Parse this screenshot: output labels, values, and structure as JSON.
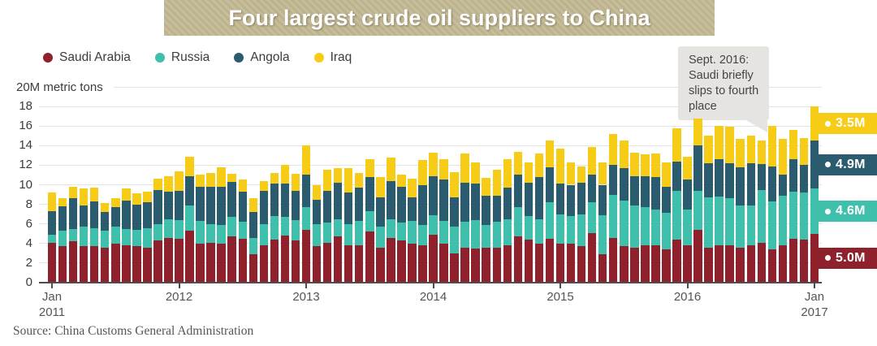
{
  "title": "Four largest crude oil suppliers to China",
  "y_axis_label": "20M metric tons",
  "source": "Source: China Customs General Administration",
  "annotation": {
    "text": "Sept. 2016:\nSaudi briefly\nslips to fourth\nplace"
  },
  "colors": {
    "saudi": "#8E212B",
    "russia": "#3FC0AD",
    "angola": "#2A5B6E",
    "iraq": "#F6CC16",
    "title_bg": "#C1B794",
    "annotation_bg": "#E5E4E1",
    "grid": "#E3E3E3",
    "axis": "#4D4D4D"
  },
  "legend": [
    {
      "name": "Saudi Arabia",
      "color": "#8E212B"
    },
    {
      "name": "Russia",
      "color": "#3FC0AD"
    },
    {
      "name": "Angola",
      "color": "#2A5B6E"
    },
    {
      "name": "Iraq",
      "color": "#F6CC16"
    }
  ],
  "end_labels": [
    {
      "text": "3.5M",
      "series": "Iraq"
    },
    {
      "text": "4.9M",
      "series": "Angola"
    },
    {
      "text": "4.6M",
      "series": "Russia"
    },
    {
      "text": "5.0M",
      "series": "Saudi Arabia"
    }
  ],
  "chart_data": {
    "type": "bar",
    "stacked": true,
    "title": "Four largest crude oil suppliers to China",
    "xlabel": "",
    "ylabel": "20M metric tons",
    "ylim": [
      0,
      20
    ],
    "yticks": [
      0,
      2,
      4,
      6,
      8,
      10,
      12,
      14,
      16,
      18
    ],
    "grid": true,
    "legend_position": "top-left",
    "units": "million metric tons per month",
    "x_ticks": [
      {
        "index": 0,
        "label": "Jan\n2011"
      },
      {
        "index": 12,
        "label": "2012"
      },
      {
        "index": 24,
        "label": "2013"
      },
      {
        "index": 36,
        "label": "2014"
      },
      {
        "index": 48,
        "label": "2015"
      },
      {
        "index": 60,
        "label": "2016"
      },
      {
        "index": 72,
        "label": "Jan\n2017"
      }
    ],
    "categories": [
      "Jan 2011",
      "Feb 2011",
      "Mar 2011",
      "Apr 2011",
      "May 2011",
      "Jun 2011",
      "Jul 2011",
      "Aug 2011",
      "Sep 2011",
      "Oct 2011",
      "Nov 2011",
      "Dec 2011",
      "Jan 2012",
      "Feb 2012",
      "Mar 2012",
      "Apr 2012",
      "May 2012",
      "Jun 2012",
      "Jul 2012",
      "Aug 2012",
      "Sep 2012",
      "Oct 2012",
      "Nov 2012",
      "Dec 2012",
      "Jan 2013",
      "Feb 2013",
      "Mar 2013",
      "Apr 2013",
      "May 2013",
      "Jun 2013",
      "Jul 2013",
      "Aug 2013",
      "Sep 2013",
      "Oct 2013",
      "Nov 2013",
      "Dec 2013",
      "Jan 2014",
      "Feb 2014",
      "Mar 2014",
      "Apr 2014",
      "May 2014",
      "Jun 2014",
      "Jul 2014",
      "Aug 2014",
      "Sep 2014",
      "Oct 2014",
      "Nov 2014",
      "Dec 2014",
      "Jan 2015",
      "Feb 2015",
      "Mar 2015",
      "Apr 2015",
      "May 2015",
      "Jun 2015",
      "Jul 2015",
      "Aug 2015",
      "Sep 2015",
      "Oct 2015",
      "Nov 2015",
      "Dec 2015",
      "Jan 2016",
      "Feb 2016",
      "Mar 2016",
      "Apr 2016",
      "May 2016",
      "Jun 2016",
      "Jul 2016",
      "Aug 2016",
      "Sep 2016",
      "Oct 2016",
      "Nov 2016",
      "Dec 2016",
      "Jan 2017"
    ],
    "series": [
      {
        "name": "Saudi Arabia",
        "color": "#8E212B",
        "values": [
          4.1,
          3.7,
          4.2,
          3.7,
          3.7,
          3.6,
          4.0,
          3.8,
          3.7,
          3.6,
          4.3,
          4.6,
          4.5,
          5.3,
          4.0,
          4.1,
          4.0,
          4.7,
          4.5,
          2.9,
          3.8,
          4.4,
          4.8,
          4.3,
          5.4,
          3.7,
          4.1,
          4.7,
          3.8,
          3.8,
          5.2,
          3.6,
          4.6,
          4.3,
          4.0,
          3.8,
          4.9,
          4.0,
          3.0,
          3.6,
          3.5,
          3.6,
          3.6,
          3.8,
          4.7,
          4.4,
          4.0,
          4.5,
          4.0,
          4.0,
          3.7,
          5.1,
          2.9,
          4.6,
          3.7,
          3.6,
          3.8,
          3.8,
          3.4,
          4.4,
          3.8,
          5.4,
          3.6,
          3.8,
          3.8,
          3.6,
          3.8,
          4.1,
          3.4,
          3.8,
          4.5,
          4.4,
          5.0
        ]
      },
      {
        "name": "Russia",
        "color": "#3FC0AD",
        "values": [
          0.8,
          1.6,
          1.3,
          2.0,
          1.9,
          1.7,
          1.7,
          1.7,
          1.7,
          2.0,
          1.7,
          1.9,
          1.9,
          2.6,
          2.3,
          1.9,
          1.9,
          2.0,
          1.7,
          1.7,
          2.2,
          2.4,
          1.9,
          2.1,
          2.3,
          2.3,
          2.0,
          1.8,
          2.2,
          2.5,
          2.1,
          2.1,
          1.9,
          1.8,
          2.3,
          2.1,
          2.0,
          2.3,
          2.7,
          2.6,
          2.9,
          2.3,
          2.6,
          2.7,
          3.0,
          2.4,
          2.5,
          3.7,
          3.0,
          2.8,
          3.3,
          3.1,
          4.0,
          4.4,
          4.7,
          4.3,
          3.9,
          3.7,
          3.7,
          5.0,
          3.7,
          4.0,
          5.1,
          5.0,
          4.8,
          4.3,
          4.1,
          5.4,
          4.9,
          5.1,
          4.8,
          4.8,
          4.6
        ]
      },
      {
        "name": "Angola",
        "color": "#2A5B6E",
        "values": [
          2.4,
          2.5,
          3.1,
          2.2,
          2.7,
          1.9,
          2.0,
          2.9,
          2.6,
          2.6,
          3.5,
          2.8,
          3.0,
          3.0,
          3.5,
          3.8,
          3.9,
          3.6,
          3.1,
          2.6,
          3.4,
          3.3,
          3.4,
          3.0,
          3.3,
          2.5,
          3.3,
          3.7,
          3.2,
          3.4,
          3.5,
          3.0,
          3.9,
          3.7,
          2.4,
          4.1,
          4.0,
          4.2,
          3.0,
          4.0,
          3.7,
          3.0,
          2.7,
          3.2,
          3.3,
          3.4,
          4.3,
          3.6,
          3.1,
          3.2,
          3.2,
          2.8,
          3.1,
          3.0,
          3.3,
          3.0,
          3.2,
          3.3,
          2.7,
          3.0,
          3.0,
          4.6,
          3.5,
          3.8,
          3.6,
          3.9,
          4.3,
          2.6,
          3.6,
          2.1,
          3.3,
          2.8,
          4.9
        ]
      },
      {
        "name": "Iraq",
        "color": "#F6CC16",
        "values": [
          1.9,
          0.8,
          1.2,
          1.7,
          1.4,
          0.9,
          0.9,
          1.2,
          1.1,
          1.1,
          1.1,
          1.6,
          2.0,
          2.0,
          1.2,
          1.4,
          2.0,
          0.8,
          1.2,
          1.4,
          1.0,
          1.1,
          1.9,
          1.7,
          3.0,
          1.5,
          2.1,
          1.5,
          2.5,
          1.5,
          1.8,
          2.1,
          2.4,
          1.2,
          1.9,
          2.5,
          2.4,
          2.1,
          2.6,
          3.0,
          2.2,
          1.8,
          2.6,
          2.9,
          2.4,
          2.1,
          2.4,
          2.7,
          3.6,
          2.3,
          1.7,
          2.9,
          2.3,
          3.2,
          2.8,
          2.4,
          2.2,
          2.4,
          2.5,
          3.4,
          2.4,
          2.8,
          2.8,
          3.4,
          3.7,
          2.9,
          2.8,
          2.4,
          4.1,
          3.7,
          3.0,
          2.8,
          3.5
        ]
      }
    ]
  }
}
